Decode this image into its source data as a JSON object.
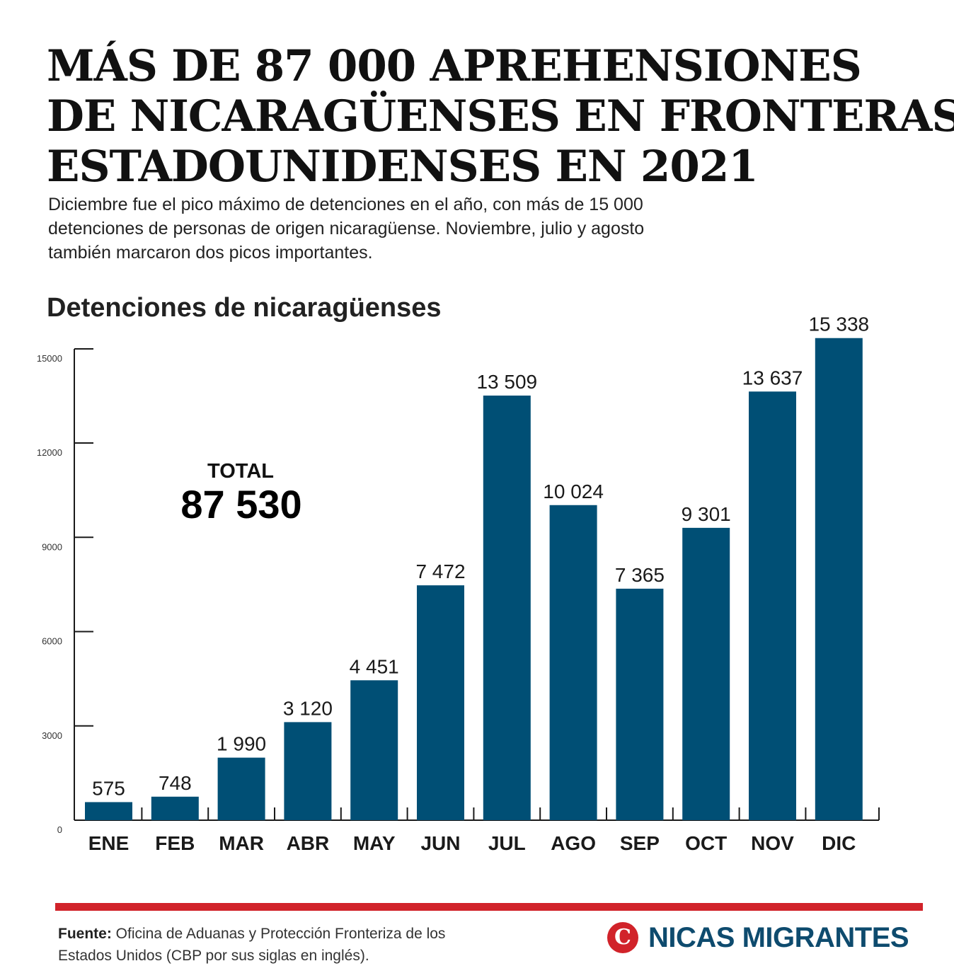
{
  "title_lines": [
    "MÁS DE 87 000 APREHENSIONES",
    "DE NICARAGÜENSES EN FRONTERAS",
    "ESTADOUNIDENSES EN 2021"
  ],
  "subtitle_lines": [
    "Diciembre fue el pico máximo de detenciones en el año, con más de 15 000",
    "detenciones de personas de origen nicaragüense. Noviembre, julio y agosto",
    "también marcaron dos picos importantes."
  ],
  "total": {
    "label": "TOTAL",
    "value": "87 530"
  },
  "source": {
    "label": "Fuente:",
    "line1": "Oficina de Aduanas y Protección Fronteriza de los",
    "line2": "Estados Unidos (CBP por sus siglas en inglés)."
  },
  "brand": {
    "icon": "C",
    "name": "NICAS MIGRANTES",
    "icon_name": "nicas-migrantes-logo-icon"
  },
  "colors": {
    "bar": "#004f75",
    "accent": "#d1232a",
    "brand": "#0e4b6e"
  },
  "chart_data": {
    "type": "bar",
    "title": "Detenciones de nicaragüenses",
    "categories": [
      "ENE",
      "FEB",
      "MAR",
      "ABR",
      "MAY",
      "JUN",
      "JUL",
      "AGO",
      "SEP",
      "OCT",
      "NOV",
      "DIC"
    ],
    "values": [
      575,
      748,
      1990,
      3120,
      4451,
      7472,
      13509,
      10024,
      7365,
      9301,
      13637,
      15338
    ],
    "value_labels": [
      "575",
      "748",
      "1 990",
      "3 120",
      "4 451",
      "7 472",
      "13 509",
      "10 024",
      "7 365",
      "9 301",
      "13 637",
      "15 338"
    ],
    "yticks": [
      0,
      3000,
      6000,
      9000,
      12000,
      15000
    ],
    "ytick_labels": [
      "0",
      "3000",
      "6000",
      "9000",
      "12000",
      "15000"
    ],
    "ylim": [
      0,
      15000
    ],
    "grid": false,
    "legend": "none"
  }
}
